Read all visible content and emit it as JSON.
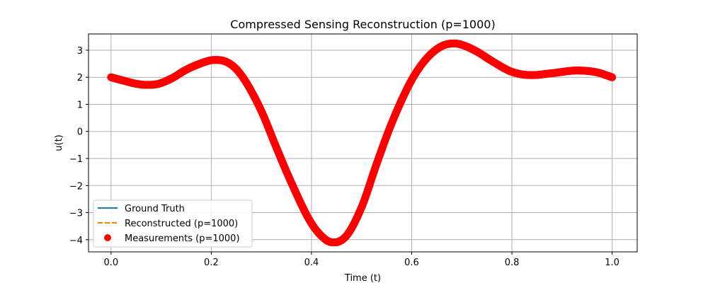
{
  "chart_data": {
    "type": "line",
    "title": "Compressed Sensing Reconstruction (p=1000)",
    "xlabel": "Time (t)",
    "ylabel": "u(t)",
    "xlim": [
      -0.045,
      1.05
    ],
    "ylim": [
      -4.45,
      3.6
    ],
    "xticks": [
      0.0,
      0.2,
      0.4,
      0.6,
      0.8,
      1.0
    ],
    "xtick_labels": [
      "0.0",
      "0.2",
      "0.4",
      "0.6",
      "0.8",
      "1.0"
    ],
    "yticks": [
      -4,
      -3,
      -2,
      -1,
      0,
      1,
      2,
      3
    ],
    "ytick_labels": [
      "−4",
      "−3",
      "−2",
      "−1",
      "0",
      "1",
      "2",
      "3"
    ],
    "grid": true,
    "legend_position": "lower-left",
    "x": [
      0.0,
      0.03,
      0.05,
      0.07,
      0.09,
      0.12,
      0.15,
      0.18,
      0.2,
      0.21,
      0.23,
      0.25,
      0.27,
      0.3,
      0.33,
      0.36,
      0.4,
      0.43,
      0.445,
      0.47,
      0.5,
      0.53,
      0.56,
      0.6,
      0.63,
      0.66,
      0.685,
      0.7,
      0.73,
      0.76,
      0.8,
      0.84,
      0.88,
      0.93,
      0.97,
      1.0
    ],
    "series": [
      {
        "name": "Ground Truth",
        "kind": "line",
        "color": "#1f77b4",
        "values": [
          2.0,
          1.85,
          1.76,
          1.72,
          1.74,
          1.95,
          2.28,
          2.52,
          2.63,
          2.64,
          2.57,
          2.3,
          1.8,
          0.75,
          -0.6,
          -1.9,
          -3.4,
          -4.02,
          -4.1,
          -3.85,
          -2.8,
          -1.2,
          0.3,
          1.9,
          2.7,
          3.15,
          3.25,
          3.2,
          2.95,
          2.6,
          2.2,
          2.08,
          2.15,
          2.25,
          2.18,
          2.0
        ]
      },
      {
        "name": "Reconstructed (p=1000)",
        "kind": "dashed",
        "color": "#ff7f0e",
        "values": [
          2.0,
          1.85,
          1.76,
          1.72,
          1.74,
          1.95,
          2.28,
          2.52,
          2.63,
          2.64,
          2.57,
          2.3,
          1.8,
          0.75,
          -0.6,
          -1.9,
          -3.4,
          -4.02,
          -4.1,
          -3.85,
          -2.8,
          -1.2,
          0.3,
          1.9,
          2.7,
          3.15,
          3.25,
          3.2,
          2.95,
          2.6,
          2.2,
          2.08,
          2.15,
          2.25,
          2.18,
          2.0
        ]
      },
      {
        "name": "Measurements (p=1000)",
        "kind": "scatter",
        "color": "#ff0000",
        "values": [
          2.0,
          1.85,
          1.76,
          1.72,
          1.74,
          1.95,
          2.28,
          2.52,
          2.63,
          2.64,
          2.57,
          2.3,
          1.8,
          0.75,
          -0.6,
          -1.9,
          -3.4,
          -4.02,
          -4.1,
          -3.85,
          -2.8,
          -1.2,
          0.3,
          1.9,
          2.7,
          3.15,
          3.25,
          3.2,
          2.95,
          2.6,
          2.2,
          2.08,
          2.15,
          2.25,
          2.18,
          2.0
        ]
      }
    ]
  }
}
